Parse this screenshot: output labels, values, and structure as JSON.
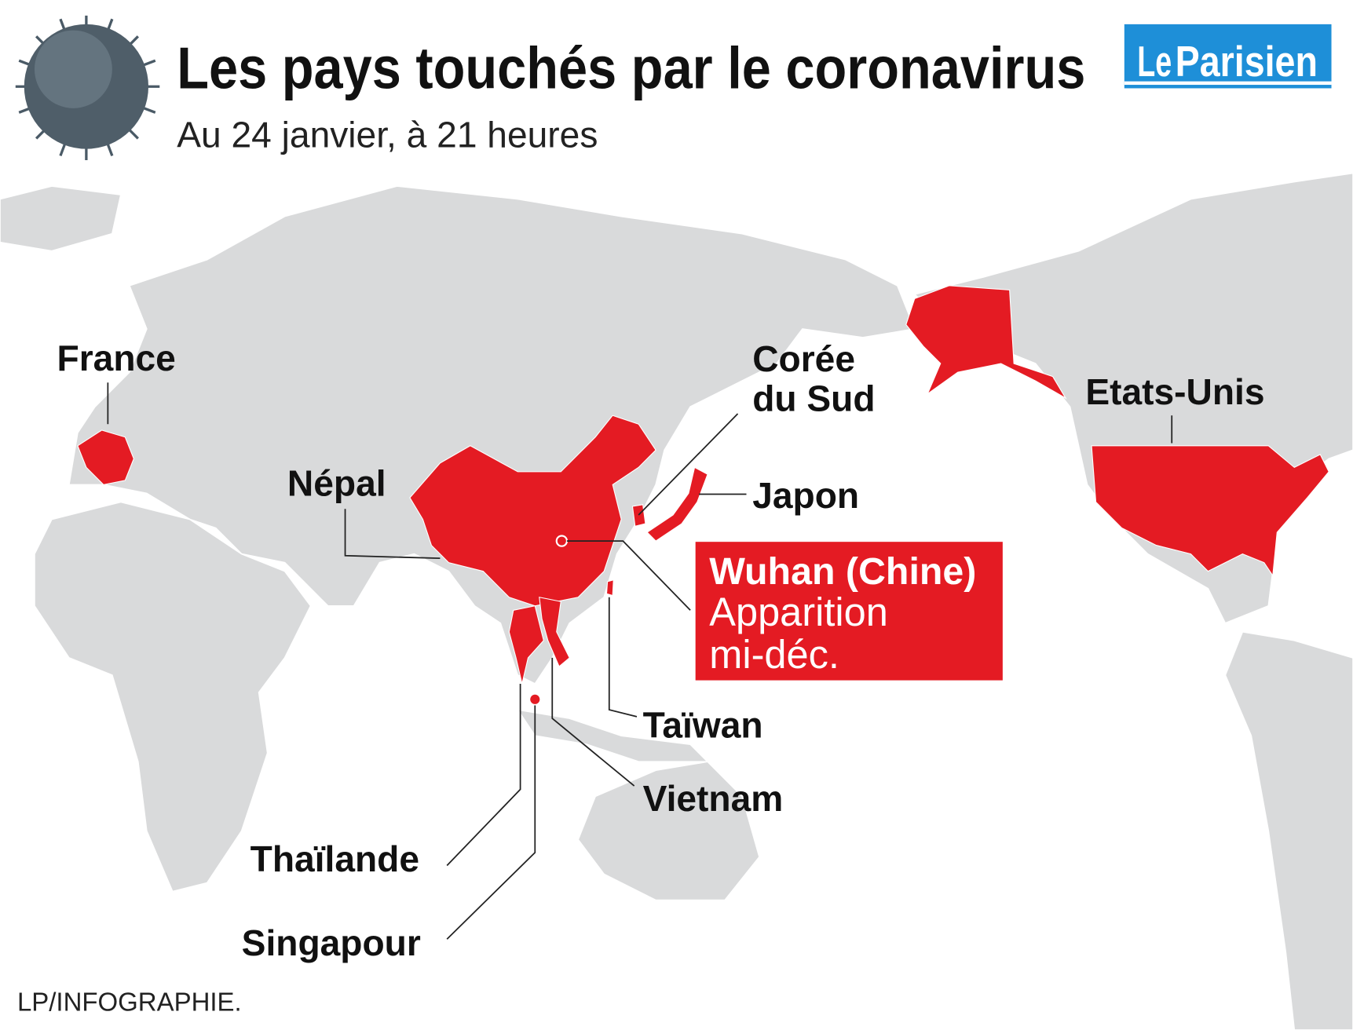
{
  "header": {
    "title": "Les pays touchés par le coronavirus",
    "subtitle": "Au 24 janvier, à 21 heures"
  },
  "logo": {
    "parts": [
      "Le",
      "Parisien"
    ]
  },
  "labels": [
    {
      "lines": [
        "France"
      ]
    },
    {
      "lines": [
        "Corée",
        "du Sud"
      ]
    },
    {
      "lines": [
        "Etats-Unis"
      ]
    },
    {
      "lines": [
        "Népal"
      ]
    },
    {
      "lines": [
        "Japon"
      ]
    },
    {
      "lines": [
        "Taïwan"
      ]
    },
    {
      "lines": [
        "Vietnam"
      ]
    },
    {
      "lines": [
        "Thaïlande"
      ]
    },
    {
      "lines": [
        "Singapour"
      ]
    }
  ],
  "origin": {
    "title": "Wuhan (Chine)",
    "lines": [
      "Apparition",
      "mi-déc."
    ]
  },
  "credit": "LP/INFOGRAPHIE."
}
